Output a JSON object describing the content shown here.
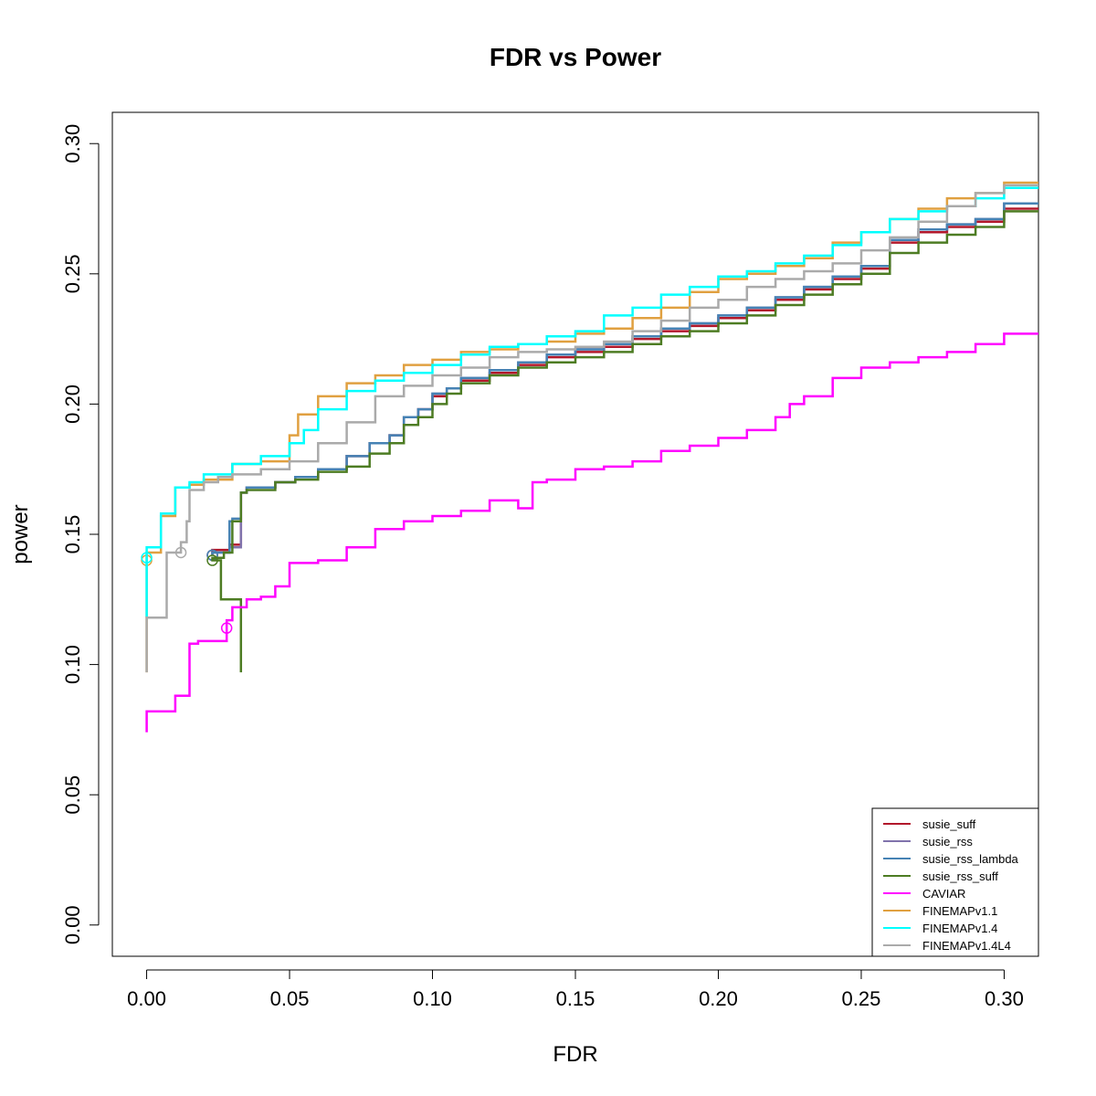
{
  "chart_data": {
    "type": "line",
    "title": "FDR vs Power",
    "xlabel": "FDR",
    "ylabel": "power",
    "xlim": [
      -0.012,
      0.312
    ],
    "ylim": [
      -0.012,
      0.312
    ],
    "xticks": [
      "0.00",
      "0.05",
      "0.10",
      "0.15",
      "0.20",
      "0.25",
      "0.30"
    ],
    "yticks": [
      "0.00",
      "0.05",
      "0.10",
      "0.15",
      "0.20",
      "0.25",
      "0.30"
    ],
    "legend_position": "bottom-right",
    "series": [
      {
        "name": "susie_suff",
        "color": "#b2182b",
        "marker": [
          0.023,
          0.142
        ],
        "x": [
          0.023,
          0.029,
          0.033,
          0.035,
          0.045,
          0.052,
          0.06,
          0.07,
          0.078,
          0.085,
          0.09,
          0.095,
          0.1,
          0.105,
          0.11,
          0.12,
          0.13,
          0.14,
          0.15,
          0.16,
          0.17,
          0.18,
          0.19,
          0.2,
          0.21,
          0.22,
          0.23,
          0.24,
          0.25,
          0.26,
          0.27,
          0.28,
          0.29,
          0.3,
          0.312
        ],
        "y": [
          0.142,
          0.144,
          0.146,
          0.166,
          0.168,
          0.17,
          0.172,
          0.175,
          0.18,
          0.185,
          0.188,
          0.195,
          0.198,
          0.203,
          0.206,
          0.209,
          0.212,
          0.215,
          0.218,
          0.22,
          0.222,
          0.225,
          0.228,
          0.23,
          0.233,
          0.236,
          0.24,
          0.244,
          0.248,
          0.252,
          0.262,
          0.266,
          0.268,
          0.27,
          0.275
        ]
      },
      {
        "name": "susie_rss",
        "color": "#8073ac",
        "marker": [
          0.023,
          0.142
        ],
        "x": [
          0.023,
          0.029,
          0.033,
          0.035,
          0.045,
          0.052,
          0.06,
          0.07,
          0.078,
          0.085,
          0.09,
          0.095,
          0.1,
          0.105,
          0.11,
          0.12,
          0.13,
          0.14,
          0.15,
          0.16,
          0.17,
          0.18,
          0.19,
          0.2,
          0.21,
          0.22,
          0.23,
          0.24,
          0.25,
          0.26,
          0.27,
          0.28,
          0.29,
          0.3,
          0.312
        ],
        "y": [
          0.142,
          0.143,
          0.145,
          0.166,
          0.168,
          0.17,
          0.172,
          0.175,
          0.18,
          0.185,
          0.188,
          0.195,
          0.198,
          0.204,
          0.206,
          0.21,
          0.213,
          0.216,
          0.219,
          0.221,
          0.223,
          0.226,
          0.229,
          0.231,
          0.234,
          0.237,
          0.241,
          0.245,
          0.249,
          0.253,
          0.263,
          0.267,
          0.269,
          0.271,
          0.277
        ]
      },
      {
        "name": "susie_rss_lambda",
        "color": "#4682b4",
        "marker": [
          0.023,
          0.142
        ],
        "x": [
          0.023,
          0.029,
          0.03,
          0.033,
          0.035,
          0.045,
          0.052,
          0.06,
          0.07,
          0.078,
          0.085,
          0.09,
          0.095,
          0.1,
          0.105,
          0.11,
          0.12,
          0.13,
          0.14,
          0.15,
          0.16,
          0.17,
          0.18,
          0.19,
          0.2,
          0.21,
          0.22,
          0.23,
          0.24,
          0.25,
          0.26,
          0.27,
          0.28,
          0.29,
          0.3,
          0.312
        ],
        "y": [
          0.142,
          0.143,
          0.155,
          0.156,
          0.166,
          0.168,
          0.17,
          0.172,
          0.175,
          0.18,
          0.185,
          0.188,
          0.195,
          0.198,
          0.204,
          0.206,
          0.21,
          0.213,
          0.216,
          0.219,
          0.221,
          0.223,
          0.226,
          0.229,
          0.231,
          0.234,
          0.237,
          0.241,
          0.245,
          0.249,
          0.253,
          0.263,
          0.267,
          0.269,
          0.271,
          0.277
        ]
      },
      {
        "name": "susie_rss_suff",
        "color": "#4d7c23",
        "marker": [
          0.023,
          0.14
        ],
        "x": [
          0.033,
          0.026,
          0.023,
          0.027,
          0.03,
          0.033,
          0.035,
          0.045,
          0.052,
          0.06,
          0.07,
          0.078,
          0.085,
          0.09,
          0.095,
          0.1,
          0.105,
          0.11,
          0.12,
          0.13,
          0.14,
          0.15,
          0.16,
          0.17,
          0.18,
          0.19,
          0.2,
          0.21,
          0.22,
          0.23,
          0.24,
          0.25,
          0.26,
          0.27,
          0.28,
          0.29,
          0.3,
          0.312
        ],
        "y": [
          0.097,
          0.125,
          0.14,
          0.141,
          0.143,
          0.155,
          0.166,
          0.167,
          0.17,
          0.171,
          0.174,
          0.176,
          0.181,
          0.185,
          0.192,
          0.195,
          0.2,
          0.204,
          0.208,
          0.211,
          0.214,
          0.216,
          0.218,
          0.22,
          0.223,
          0.226,
          0.228,
          0.231,
          0.234,
          0.238,
          0.242,
          0.246,
          0.25,
          0.258,
          0.262,
          0.265,
          0.268,
          0.274
        ]
      },
      {
        "name": "CAVIAR",
        "color": "#ff00ff",
        "marker": [
          0.028,
          0.114
        ],
        "x": [
          0.0,
          0.0,
          0.01,
          0.015,
          0.018,
          0.028,
          0.03,
          0.035,
          0.04,
          0.045,
          0.05,
          0.06,
          0.07,
          0.08,
          0.09,
          0.1,
          0.11,
          0.12,
          0.13,
          0.135,
          0.14,
          0.15,
          0.16,
          0.17,
          0.18,
          0.19,
          0.2,
          0.21,
          0.22,
          0.225,
          0.23,
          0.24,
          0.25,
          0.26,
          0.27,
          0.28,
          0.29,
          0.3,
          0.312
        ],
        "y": [
          0.074,
          0.08,
          0.082,
          0.088,
          0.108,
          0.109,
          0.117,
          0.122,
          0.125,
          0.126,
          0.13,
          0.139,
          0.14,
          0.145,
          0.152,
          0.155,
          0.157,
          0.159,
          0.163,
          0.16,
          0.17,
          0.171,
          0.175,
          0.176,
          0.178,
          0.182,
          0.184,
          0.187,
          0.19,
          0.195,
          0.2,
          0.203,
          0.21,
          0.214,
          0.216,
          0.218,
          0.22,
          0.223,
          0.227
        ]
      },
      {
        "name": "FINEMAPv1.1",
        "color": "#e0a040",
        "marker": [
          0.0,
          0.14
        ],
        "x": [
          0.0,
          0.0,
          0.005,
          0.01,
          0.015,
          0.02,
          0.03,
          0.04,
          0.05,
          0.053,
          0.06,
          0.07,
          0.08,
          0.09,
          0.1,
          0.11,
          0.12,
          0.13,
          0.14,
          0.15,
          0.16,
          0.17,
          0.18,
          0.19,
          0.2,
          0.21,
          0.22,
          0.23,
          0.24,
          0.25,
          0.26,
          0.27,
          0.28,
          0.29,
          0.3,
          0.312
        ],
        "y": [
          0.097,
          0.14,
          0.143,
          0.157,
          0.168,
          0.169,
          0.171,
          0.177,
          0.178,
          0.188,
          0.196,
          0.203,
          0.208,
          0.211,
          0.215,
          0.217,
          0.22,
          0.221,
          0.223,
          0.224,
          0.227,
          0.229,
          0.233,
          0.237,
          0.243,
          0.248,
          0.25,
          0.253,
          0.256,
          0.262,
          0.266,
          0.271,
          0.275,
          0.279,
          0.281,
          0.285
        ]
      },
      {
        "name": "FINEMAPv1.4",
        "color": "#00ffff",
        "marker": [
          0.0,
          0.141
        ],
        "x": [
          0.0,
          0.0,
          0.005,
          0.01,
          0.015,
          0.02,
          0.03,
          0.04,
          0.05,
          0.055,
          0.06,
          0.07,
          0.08,
          0.09,
          0.1,
          0.11,
          0.12,
          0.13,
          0.14,
          0.15,
          0.16,
          0.17,
          0.18,
          0.19,
          0.2,
          0.21,
          0.22,
          0.23,
          0.24,
          0.25,
          0.26,
          0.27,
          0.28,
          0.29,
          0.3,
          0.312
        ],
        "y": [
          0.118,
          0.143,
          0.145,
          0.158,
          0.168,
          0.17,
          0.173,
          0.177,
          0.18,
          0.185,
          0.19,
          0.198,
          0.205,
          0.209,
          0.212,
          0.215,
          0.219,
          0.222,
          0.223,
          0.226,
          0.228,
          0.234,
          0.237,
          0.242,
          0.245,
          0.249,
          0.251,
          0.254,
          0.257,
          0.261,
          0.266,
          0.271,
          0.274,
          0.276,
          0.279,
          0.283
        ]
      },
      {
        "name": "FINEMAPv1.4L4",
        "color": "#aaaaaa",
        "marker": [
          0.012,
          0.143
        ],
        "x": [
          0.0,
          0.0,
          0.007,
          0.012,
          0.014,
          0.015,
          0.02,
          0.025,
          0.03,
          0.04,
          0.05,
          0.06,
          0.07,
          0.08,
          0.09,
          0.1,
          0.11,
          0.12,
          0.13,
          0.14,
          0.15,
          0.16,
          0.17,
          0.18,
          0.19,
          0.2,
          0.21,
          0.22,
          0.23,
          0.24,
          0.25,
          0.26,
          0.27,
          0.28,
          0.29,
          0.3,
          0.312
        ],
        "y": [
          0.097,
          0.117,
          0.118,
          0.143,
          0.147,
          0.155,
          0.167,
          0.17,
          0.172,
          0.173,
          0.175,
          0.178,
          0.185,
          0.193,
          0.203,
          0.207,
          0.211,
          0.214,
          0.218,
          0.22,
          0.221,
          0.222,
          0.224,
          0.228,
          0.232,
          0.237,
          0.24,
          0.245,
          0.248,
          0.251,
          0.254,
          0.259,
          0.264,
          0.27,
          0.276,
          0.281,
          0.284
        ]
      }
    ]
  }
}
